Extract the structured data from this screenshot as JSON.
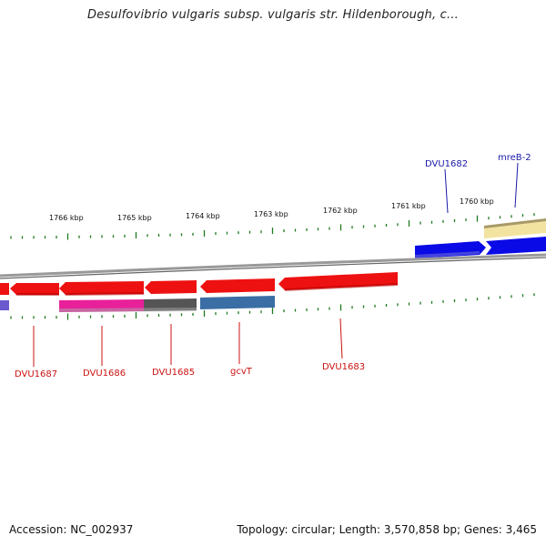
{
  "title": "Desulfovibrio vulgaris subsp. vulgaris str. Hildenborough, c...",
  "footer": {
    "accession": "Accession: NC_002937",
    "summary": "Topology: circular; Length: 3,570,858 bp; Genes: 3,465"
  },
  "scale": {
    "unit": "kbp",
    "ticks": [
      {
        "label": "1766 kbp"
      },
      {
        "label": "1765 kbp"
      },
      {
        "label": "1764 kbp"
      },
      {
        "label": "1763 kbp"
      },
      {
        "label": "1762 kbp"
      },
      {
        "label": "1761 kbp"
      },
      {
        "label": "1760 kbp"
      }
    ]
  },
  "genes": {
    "top_labels": [
      {
        "name": "DVU1682",
        "color": "#1a1aaa"
      },
      {
        "name": "mreB-2",
        "color": "#1a1aaa"
      }
    ],
    "bottom_labels": [
      {
        "name": "DVU1687",
        "color": "#cc1111"
      },
      {
        "name": "DVU1686",
        "color": "#cc1111"
      },
      {
        "name": "DVU1685",
        "color": "#cc1111"
      },
      {
        "name": "gcvT",
        "color": "#cc1111"
      },
      {
        "name": "DVU1683",
        "color": "#cc1111"
      }
    ]
  },
  "colors": {
    "reverse_gene": "#ee1111",
    "forward_gene": "#0a0ae6",
    "tick_green": "#1e7a1e",
    "backbone": "#888888",
    "pink_feature": "#e8209a",
    "gray_feature": "#555555",
    "steelblue_feature": "#3a6ea5",
    "khaki_feature": "#f2e3a0",
    "purple_feature": "#6a5acd"
  }
}
